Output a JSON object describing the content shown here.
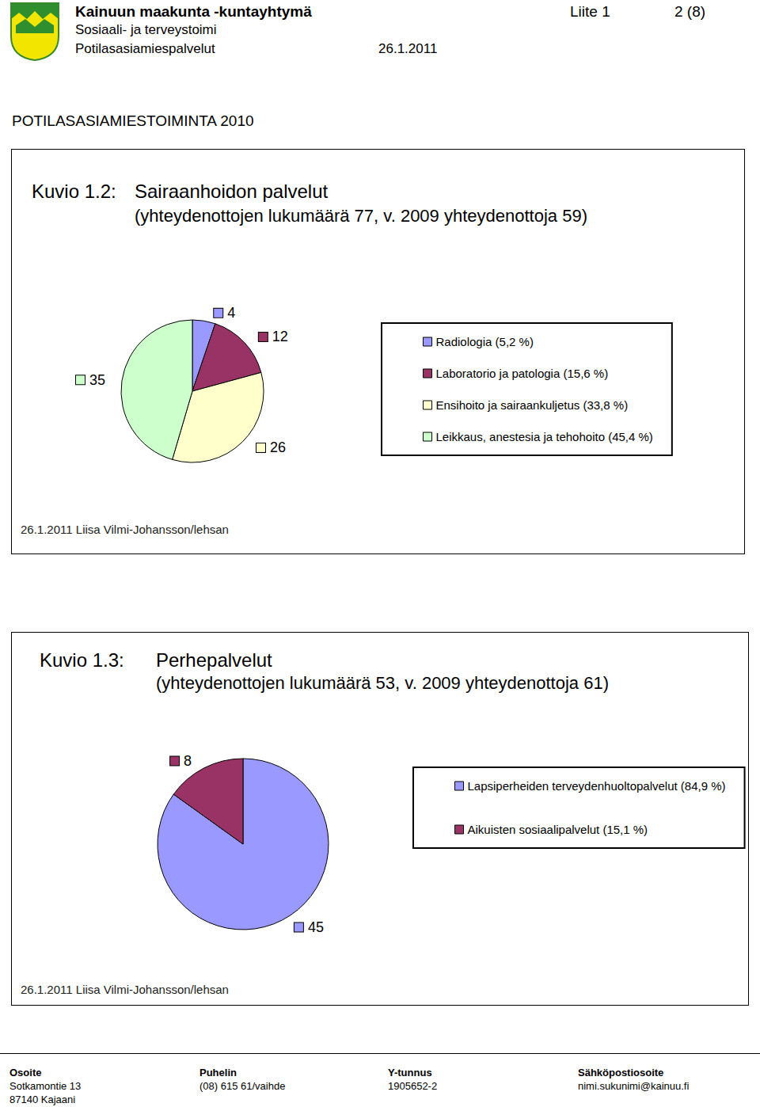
{
  "header": {
    "organization": "Kainuun maakunta -kuntayhtymä",
    "department": "Sosiaali- ja terveystoimi",
    "unit": "Potilasasiamiespalvelut",
    "date": "26.1.2011",
    "attachment": "Liite 1",
    "page": "2 (8)"
  },
  "heading": "POTILASASIAMIESTOIMINTA 2010",
  "chart_data": [
    {
      "type": "pie",
      "label": "Kuvio 1.2:",
      "title": "Sairaanhoidon palvelut",
      "subtitle": "(yhteydenottojen lukumäärä 77, v. 2009 yhteydenottoja 59)",
      "categories": [
        "Radiologia (5,2 %)",
        "Laboratorio ja patologia (15,6 %)",
        "Ensihoito ja sairaankuljetus (33,8 %)",
        "Leikkaus, anestesia ja tehohoito (45,4 %)"
      ],
      "values": [
        4,
        12,
        26,
        35
      ],
      "colors": [
        "#9999ff",
        "#993366",
        "#ffffcc",
        "#ccffcc"
      ],
      "data_labels": true,
      "legend": "right",
      "source": "26.1.2011 Liisa Vilmi-Johansson/lehsan"
    },
    {
      "type": "pie",
      "label": "Kuvio 1.3:",
      "title": "Perhepalvelut",
      "subtitle": "(yhteydenottojen lukumäärä 53, v. 2009 yhteydenottoja 61)",
      "categories": [
        "Lapsiperheiden terveydenhuoltopalvelut (84,9 %)",
        "Aikuisten sosiaalipalvelut (15,1 %)"
      ],
      "values": [
        45,
        8
      ],
      "colors": [
        "#9999ff",
        "#993366"
      ],
      "data_labels": true,
      "legend": "right",
      "source": "26.1.2011 Liisa Vilmi-Johansson/lehsan"
    }
  ],
  "footer": [
    {
      "heading": "Osoite",
      "lines": [
        "Sotkamontie 13",
        "87140 Kajaani"
      ]
    },
    {
      "heading": "Puhelin",
      "lines": [
        "(08) 615 61/vaihde"
      ]
    },
    {
      "heading": "Y-tunnus",
      "lines": [
        "1905652-2"
      ]
    },
    {
      "heading": "Sähköpostiosoite",
      "lines": [
        "nimi.sukunimi@kainuu.fi"
      ]
    }
  ]
}
